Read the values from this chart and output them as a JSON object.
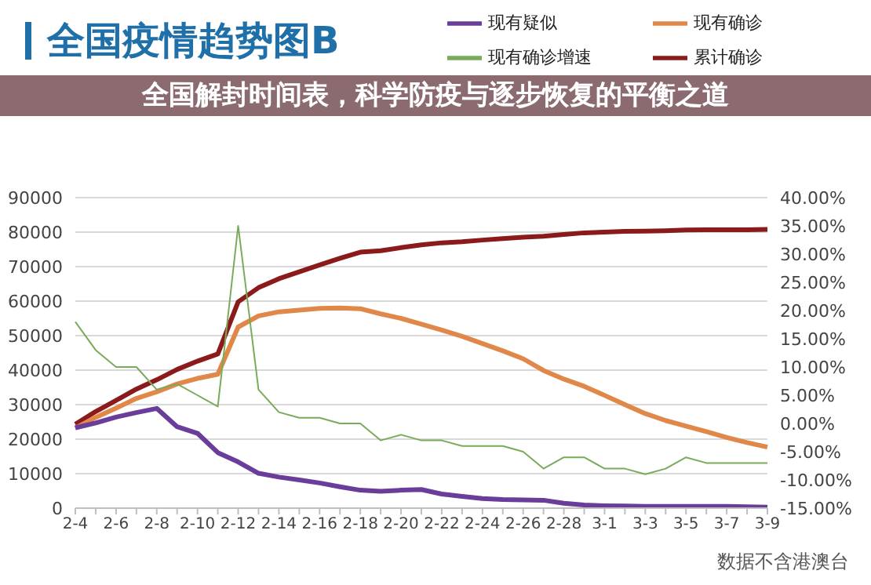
{
  "chart_data": {
    "type": "line",
    "title": "全国疫情趋势图B",
    "subtitle": "全国解封时间表，科学防疫与逐步恢复的平衡之道",
    "categories": [
      "2-4",
      null,
      "2-6",
      null,
      "2-8",
      null,
      "2-10",
      null,
      "2-12",
      null,
      "2-14",
      null,
      "2-16",
      null,
      "2-18",
      null,
      "2-20",
      null,
      "2-22",
      null,
      "2-24",
      null,
      "2-26",
      null,
      "2-28",
      null,
      "3-1",
      null,
      "3-3",
      null,
      "3-5",
      null,
      "3-7",
      null,
      "3-9"
    ],
    "series": [
      {
        "name": "累计确诊",
        "color": "#8b1a1a",
        "values": [
          24300,
          28000,
          31200,
          34500,
          37200,
          40200,
          42600,
          44700,
          59800,
          63900,
          66500,
          68500,
          70500,
          72400,
          74200,
          74600,
          75500,
          76300,
          76900,
          77200,
          77700,
          78100,
          78500,
          78800,
          79300,
          79800,
          80000,
          80200,
          80300,
          80400,
          80600,
          80700,
          80700,
          80700,
          80800
        ]
      },
      {
        "name": "现有确诊",
        "color": "#e0884a",
        "values": [
          23200,
          26300,
          29000,
          31800,
          33700,
          36000,
          37600,
          38800,
          52500,
          55700,
          56900,
          57400,
          57900,
          58000,
          57800,
          56300,
          55000,
          53300,
          51600,
          49800,
          47700,
          45600,
          43300,
          39900,
          37400,
          35300,
          32700,
          30000,
          27400,
          25400,
          23800,
          22200,
          20500,
          19000,
          17700
        ]
      },
      {
        "name": "现有疑似",
        "color": "#6a3d9a",
        "values": [
          23300,
          24700,
          26400,
          27700,
          28900,
          23600,
          21700,
          16100,
          13400,
          10100,
          9000,
          8200,
          7300,
          6200,
          5200,
          4900,
          5200,
          5400,
          4100,
          3400,
          2800,
          2500,
          2400,
          2300,
          1400,
          900,
          700,
          600,
          500,
          500,
          500,
          500,
          500,
          400,
          300
        ]
      },
      {
        "name": "现有确诊增速",
        "color": "#7aab5a",
        "axis": "y2",
        "values": [
          18,
          13,
          10,
          10,
          6,
          7,
          5,
          3,
          35,
          6,
          2,
          1,
          1,
          0,
          0,
          -3,
          -2,
          -3,
          -3,
          -4,
          -4,
          -4,
          -5,
          -8,
          -6,
          -6,
          -8,
          -8,
          -9,
          -8,
          -6,
          -7,
          -7,
          -7,
          -7
        ]
      }
    ],
    "ylim": [
      0,
      90000
    ],
    "yticks": [
      0,
      10000,
      20000,
      30000,
      40000,
      50000,
      60000,
      70000,
      80000,
      90000
    ],
    "y2lim": [
      -15,
      40
    ],
    "y2ticks": [
      {
        "value": -15,
        "label": "-15.00%"
      },
      {
        "value": -10,
        "label": "-10.00%"
      },
      {
        "value": -5,
        "label": "-5.00%"
      },
      {
        "value": 0,
        "label": "0.00%"
      },
      {
        "value": 5,
        "label": "5.00%"
      },
      {
        "value": 10,
        "label": "10.00%"
      },
      {
        "value": 15,
        "label": "15.00%"
      },
      {
        "value": 20,
        "label": "20.00%"
      },
      {
        "value": 25,
        "label": "25.00%"
      },
      {
        "value": 30,
        "label": "30.00%"
      },
      {
        "value": 35,
        "label": "35.00%"
      },
      {
        "value": 40,
        "label": "40.00%"
      }
    ],
    "grid": "y",
    "legend": "top right",
    "marker": "none",
    "line_style": "solid",
    "annotations": [
      "数据不含港澳台"
    ]
  }
}
